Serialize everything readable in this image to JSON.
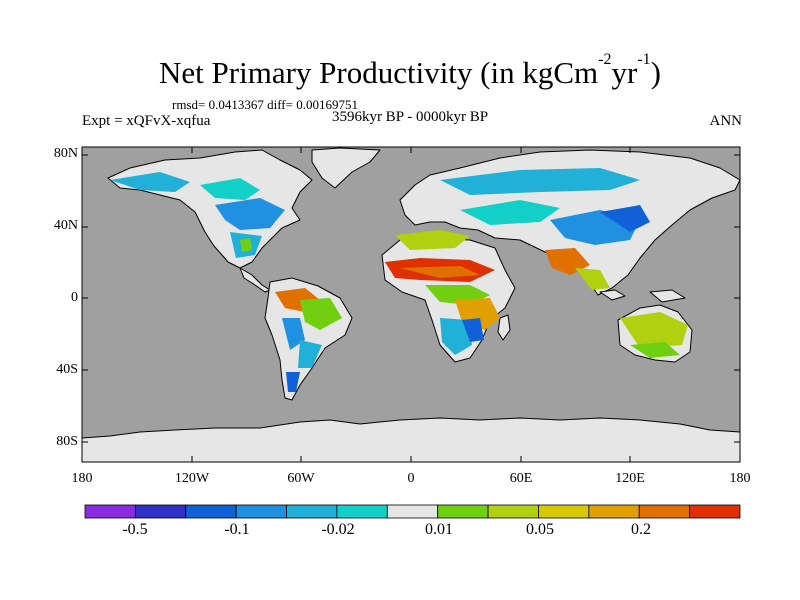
{
  "title": {
    "main": "Net Primary Productivity (in kgCm",
    "sup1": "-2",
    "mid": "yr",
    "sup2": "-1",
    "end": ")"
  },
  "stats_text": "rmsd= 0.0413367  diff= 0.00169751",
  "left_label": "Expt = xQFvX-xqfua",
  "center_label": "3596kyr BP - 0000kyr BP",
  "right_label": "ANN",
  "lat_labels": [
    "80N",
    "40N",
    "0",
    "40S",
    "80S"
  ],
  "lon_labels": [
    "180",
    "120W",
    "60W",
    "0",
    "60E",
    "120E",
    "180"
  ],
  "colorbar": {
    "colors": [
      "#8a2be2",
      "#3030c8",
      "#1060d8",
      "#2090e0",
      "#20b0d8",
      "#10d0c8",
      "#e6e6e6",
      "#70d010",
      "#b0d010",
      "#d8c800",
      "#e0a000",
      "#e07000",
      "#e03000"
    ],
    "labels": [
      "-0.5",
      "-0.1",
      "-0.02",
      "0.01",
      "0.05",
      "0.2"
    ]
  },
  "map_colors": {
    "ocean": "#a0a0a0",
    "land_neutral": "#e6e6e6",
    "coast": "#000000"
  }
}
